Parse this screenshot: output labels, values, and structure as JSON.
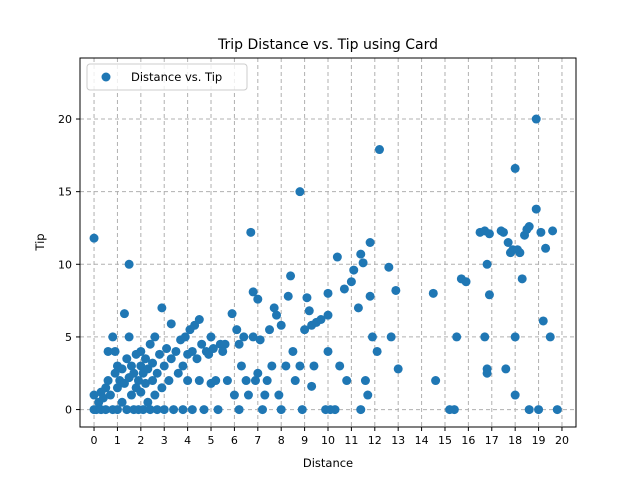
{
  "chart_data": {
    "type": "scatter",
    "title": "Trip Distance vs. Tip using Card",
    "xlabel": "Distance",
    "ylabel": "Tip",
    "xlim": [
      -0.6,
      20.6
    ],
    "ylim": [
      -1.2,
      24.2
    ],
    "xticks": [
      0,
      1,
      2,
      3,
      4,
      5,
      6,
      7,
      8,
      9,
      10,
      11,
      12,
      13,
      14,
      15,
      16,
      17,
      18,
      19,
      20
    ],
    "yticks": [
      0,
      5,
      10,
      15,
      20
    ],
    "grid": true,
    "legend_position": "top-left",
    "series": [
      {
        "name": "Distance vs. Tip",
        "color": "#1f77b4",
        "points": [
          [
            0.0,
            11.8
          ],
          [
            0.0,
            0.0
          ],
          [
            0.0,
            1.0
          ],
          [
            0.1,
            0.0
          ],
          [
            0.2,
            0.5
          ],
          [
            0.3,
            0.0
          ],
          [
            0.3,
            1.2
          ],
          [
            0.4,
            0.8
          ],
          [
            0.5,
            1.5
          ],
          [
            0.5,
            0.0
          ],
          [
            0.6,
            2.0
          ],
          [
            0.6,
            4.0
          ],
          [
            0.7,
            1.0
          ],
          [
            0.8,
            5.0
          ],
          [
            0.8,
            0.0
          ],
          [
            0.9,
            2.5
          ],
          [
            0.9,
            4.0
          ],
          [
            1.0,
            1.5
          ],
          [
            1.0,
            3.0
          ],
          [
            1.0,
            0.0
          ],
          [
            1.1,
            2.0
          ],
          [
            1.2,
            2.8
          ],
          [
            1.2,
            0.5
          ],
          [
            1.3,
            6.6
          ],
          [
            1.3,
            1.8
          ],
          [
            1.4,
            3.5
          ],
          [
            1.4,
            0.0
          ],
          [
            1.5,
            10.0
          ],
          [
            1.5,
            2.2
          ],
          [
            1.5,
            5.0
          ],
          [
            1.6,
            1.0
          ],
          [
            1.6,
            3.0
          ],
          [
            1.7,
            2.5
          ],
          [
            1.7,
            0.0
          ],
          [
            1.8,
            3.8
          ],
          [
            1.8,
            1.5
          ],
          [
            1.9,
            2.0
          ],
          [
            1.9,
            0.0
          ],
          [
            2.0,
            3.0
          ],
          [
            2.0,
            1.2
          ],
          [
            2.0,
            4.0
          ],
          [
            2.1,
            2.5
          ],
          [
            2.1,
            0.0
          ],
          [
            2.2,
            1.8
          ],
          [
            2.2,
            3.5
          ],
          [
            2.3,
            0.5
          ],
          [
            2.3,
            2.8
          ],
          [
            2.4,
            0.0
          ],
          [
            2.4,
            4.5
          ],
          [
            2.5,
            2.0
          ],
          [
            2.5,
            3.2
          ],
          [
            2.6,
            1.0
          ],
          [
            2.6,
            5.0
          ],
          [
            2.7,
            2.5
          ],
          [
            2.7,
            0.0
          ],
          [
            2.8,
            3.8
          ],
          [
            2.9,
            7.0
          ],
          [
            2.9,
            1.5
          ],
          [
            3.0,
            3.0
          ],
          [
            3.0,
            0.0
          ],
          [
            3.1,
            4.2
          ],
          [
            3.2,
            2.0
          ],
          [
            3.3,
            5.9
          ],
          [
            3.3,
            3.5
          ],
          [
            3.4,
            0.0
          ],
          [
            3.5,
            4.0
          ],
          [
            3.6,
            2.5
          ],
          [
            3.7,
            4.8
          ],
          [
            3.8,
            3.0
          ],
          [
            3.8,
            0.0
          ],
          [
            3.9,
            5.0
          ],
          [
            4.0,
            2.0
          ],
          [
            4.0,
            3.8
          ],
          [
            4.1,
            5.5
          ],
          [
            4.2,
            4.0
          ],
          [
            4.2,
            0.0
          ],
          [
            4.3,
            5.8
          ],
          [
            4.4,
            3.5
          ],
          [
            4.5,
            6.2
          ],
          [
            4.5,
            2.0
          ],
          [
            4.6,
            4.5
          ],
          [
            4.7,
            0.0
          ],
          [
            4.8,
            4.0
          ],
          [
            4.9,
            3.8
          ],
          [
            5.0,
            5.0
          ],
          [
            5.0,
            1.8
          ],
          [
            5.1,
            4.2
          ],
          [
            5.2,
            2.0
          ],
          [
            5.3,
            0.0
          ],
          [
            5.4,
            4.5
          ],
          [
            5.5,
            4.0
          ],
          [
            5.6,
            4.5
          ],
          [
            5.7,
            2.0
          ],
          [
            5.9,
            6.6
          ],
          [
            6.0,
            1.0
          ],
          [
            6.1,
            5.5
          ],
          [
            6.2,
            4.5
          ],
          [
            6.2,
            0.0
          ],
          [
            6.3,
            3.0
          ],
          [
            6.4,
            5.0
          ],
          [
            6.5,
            2.0
          ],
          [
            6.6,
            1.0
          ],
          [
            6.7,
            12.2
          ],
          [
            6.8,
            8.1
          ],
          [
            6.8,
            5.0
          ],
          [
            6.9,
            2.0
          ],
          [
            7.0,
            7.6
          ],
          [
            7.0,
            2.5
          ],
          [
            7.1,
            4.8
          ],
          [
            7.2,
            0.0
          ],
          [
            7.3,
            1.0
          ],
          [
            7.4,
            2.0
          ],
          [
            7.5,
            5.5
          ],
          [
            7.6,
            3.0
          ],
          [
            7.7,
            7.0
          ],
          [
            7.8,
            6.5
          ],
          [
            7.9,
            1.0
          ],
          [
            8.0,
            5.8
          ],
          [
            8.0,
            0.0
          ],
          [
            8.2,
            3.0
          ],
          [
            8.3,
            7.8
          ],
          [
            8.4,
            9.2
          ],
          [
            8.5,
            4.0
          ],
          [
            8.6,
            2.0
          ],
          [
            8.8,
            15.0
          ],
          [
            8.8,
            3.0
          ],
          [
            8.9,
            0.0
          ],
          [
            9.0,
            5.5
          ],
          [
            9.1,
            7.7
          ],
          [
            9.2,
            6.8
          ],
          [
            9.3,
            5.8
          ],
          [
            9.3,
            1.6
          ],
          [
            9.4,
            3.0
          ],
          [
            9.5,
            6.0
          ],
          [
            9.7,
            6.2
          ],
          [
            9.9,
            0.0
          ],
          [
            10.0,
            8.0
          ],
          [
            10.0,
            6.5
          ],
          [
            10.0,
            4.0
          ],
          [
            10.1,
            0.0
          ],
          [
            10.3,
            0.0
          ],
          [
            10.4,
            10.5
          ],
          [
            10.5,
            3.0
          ],
          [
            10.7,
            8.3
          ],
          [
            10.8,
            2.0
          ],
          [
            11.0,
            8.8
          ],
          [
            11.1,
            9.6
          ],
          [
            11.3,
            7.0
          ],
          [
            11.4,
            10.7
          ],
          [
            11.4,
            0.0
          ],
          [
            11.5,
            10.1
          ],
          [
            11.6,
            2.0
          ],
          [
            11.7,
            1.0
          ],
          [
            11.8,
            11.5
          ],
          [
            11.8,
            7.8
          ],
          [
            11.9,
            5.0
          ],
          [
            12.1,
            4.0
          ],
          [
            12.2,
            17.9
          ],
          [
            12.6,
            9.8
          ],
          [
            12.7,
            5.0
          ],
          [
            12.9,
            8.2
          ],
          [
            13.0,
            2.8
          ],
          [
            14.5,
            8.0
          ],
          [
            14.6,
            2.0
          ],
          [
            15.2,
            0.0
          ],
          [
            15.4,
            0.0
          ],
          [
            15.5,
            5.0
          ],
          [
            15.7,
            9.0
          ],
          [
            15.9,
            8.8
          ],
          [
            16.5,
            12.2
          ],
          [
            16.7,
            12.3
          ],
          [
            16.7,
            5.0
          ],
          [
            16.8,
            2.8
          ],
          [
            16.8,
            2.5
          ],
          [
            16.8,
            10.0
          ],
          [
            16.9,
            7.9
          ],
          [
            16.9,
            12.1
          ],
          [
            17.4,
            12.3
          ],
          [
            17.5,
            12.2
          ],
          [
            17.6,
            2.8
          ],
          [
            17.7,
            11.5
          ],
          [
            17.8,
            10.8
          ],
          [
            17.9,
            11.0
          ],
          [
            18.0,
            5.0
          ],
          [
            18.0,
            1.0
          ],
          [
            18.0,
            16.6
          ],
          [
            18.1,
            11.0
          ],
          [
            18.2,
            10.8
          ],
          [
            18.3,
            9.0
          ],
          [
            18.4,
            12.0
          ],
          [
            18.5,
            12.4
          ],
          [
            18.6,
            12.6
          ],
          [
            18.6,
            0.0
          ],
          [
            18.9,
            20.0
          ],
          [
            18.9,
            13.8
          ],
          [
            19.0,
            0.0
          ],
          [
            19.1,
            12.2
          ],
          [
            19.2,
            6.1
          ],
          [
            19.3,
            11.1
          ],
          [
            19.5,
            5.0
          ],
          [
            19.6,
            12.3
          ],
          [
            19.8,
            0.0
          ]
        ]
      }
    ]
  }
}
